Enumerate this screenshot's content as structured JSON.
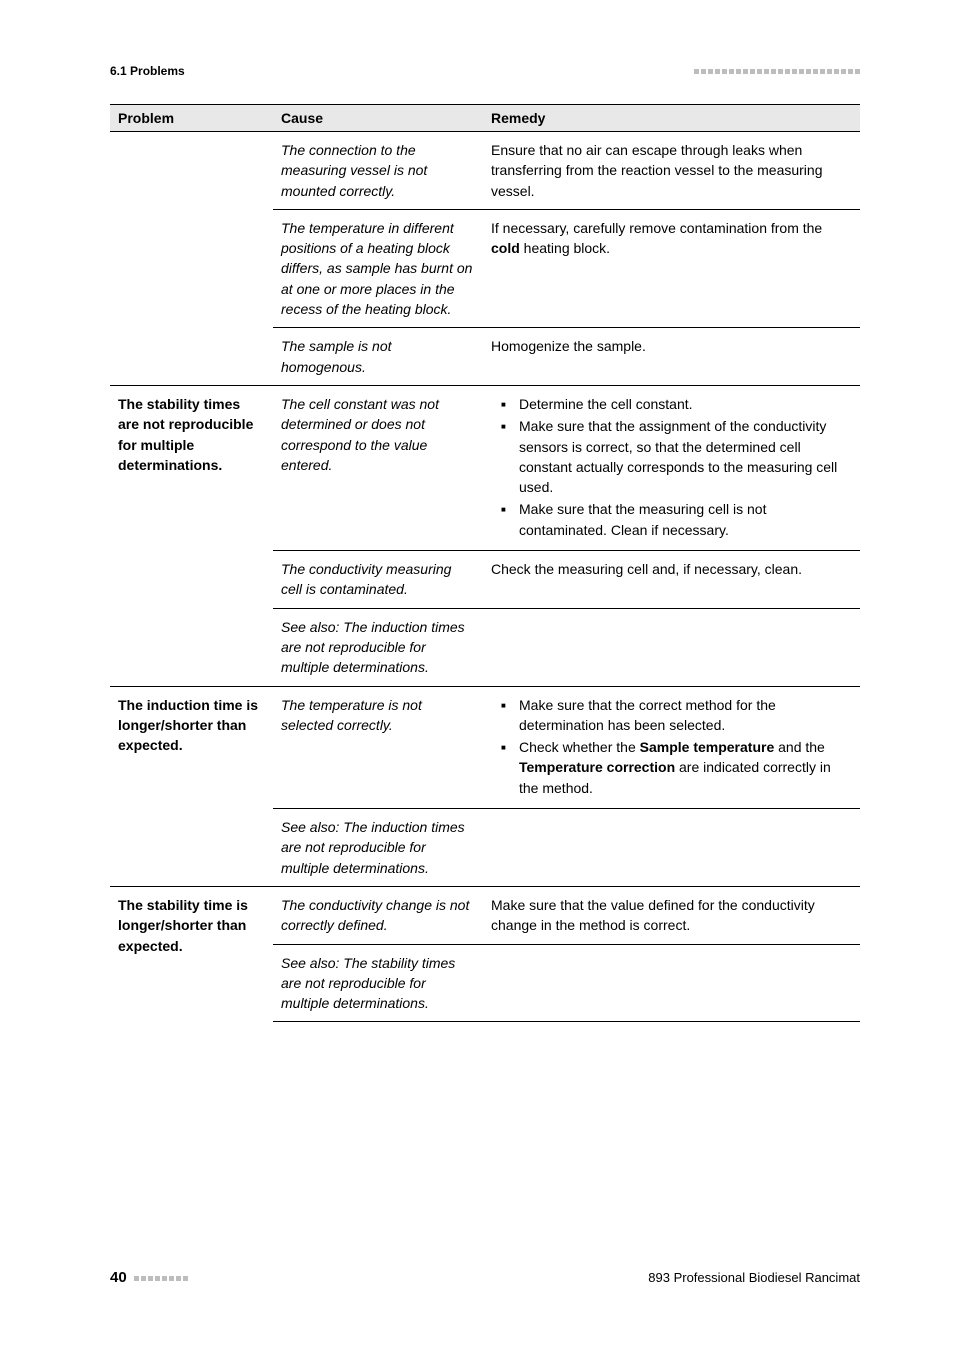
{
  "header": {
    "section_label": "6.1 Problems",
    "decor_count": 24
  },
  "table": {
    "columns": [
      "Problem",
      "Cause",
      "Remedy"
    ],
    "groups": [
      {
        "problem": "",
        "rows": [
          {
            "sep": "none",
            "cause": "The connection to the measuring vessel is not mounted correctly.",
            "remedy_type": "text",
            "remedy": "Ensure that no air can escape through leaks when transferring from the reaction vessel to the measuring vessel."
          },
          {
            "sep": "light",
            "cause": "The temperature in different positions of a heating block differs, as sample has burnt on at one or more places in the recess of the heating block.",
            "remedy_type": "html",
            "remedy": "If necessary, carefully remove contamination from the <span class=\"bold\">cold</span> heating block."
          },
          {
            "sep": "light",
            "cause": "The sample is not homogenous.",
            "remedy_type": "text",
            "remedy": "Homogenize the sample."
          }
        ]
      },
      {
        "problem": "The stability times are not reproducible for multiple determinations.",
        "rows": [
          {
            "sep": "heavy",
            "cause": "The cell constant was not determined or does not correspond to the value entered.",
            "remedy_type": "list",
            "remedy_items": [
              "Determine the cell constant.",
              "Make sure that the assignment of the conductivity sensors is correct, so that the determined cell constant actually corresponds to the measuring cell used.",
              "Make sure that the measuring cell is not contaminated. Clean if necessary."
            ]
          },
          {
            "sep": "light",
            "cause": "The conductivity measuring cell is contaminated.",
            "remedy_type": "text",
            "remedy": "Check the measuring cell and, if necessary, clean."
          },
          {
            "sep": "light",
            "cause": "See also: The induction times are not reproducible for multiple determinations.",
            "remedy_type": "text",
            "remedy": ""
          }
        ]
      },
      {
        "problem": "The induction time is longer/shorter than expected.",
        "rows": [
          {
            "sep": "heavy",
            "cause": "The temperature is not selected correctly.",
            "remedy_type": "list_html",
            "remedy_items": [
              "Make sure that the correct method for the determination has been selected.",
              "Check whether the <span class=\"bold\">Sample temperature</span> and the <span class=\"bold\">Temperature correction</span> are indicated correctly in the method."
            ]
          },
          {
            "sep": "light",
            "cause": "See also: The induction times are not reproducible for multiple determinations.",
            "remedy_type": "text",
            "remedy": ""
          }
        ]
      },
      {
        "problem": "The stability time is longer/shorter than expected.",
        "rows": [
          {
            "sep": "heavy",
            "cause": "The conductivity change is not correctly defined.",
            "remedy_type": "text",
            "remedy": "Make sure that the value defined for the conductivity change in the method is correct."
          },
          {
            "sep": "light",
            "bottom": "heavy",
            "cause": "See also: The stability times are not reproducible for multiple determinations.",
            "remedy_type": "text",
            "remedy": ""
          }
        ]
      }
    ]
  },
  "footer": {
    "page_number": "40",
    "decor_count": 8,
    "doc_title": "893 Professional Biodiesel Rancimat"
  }
}
